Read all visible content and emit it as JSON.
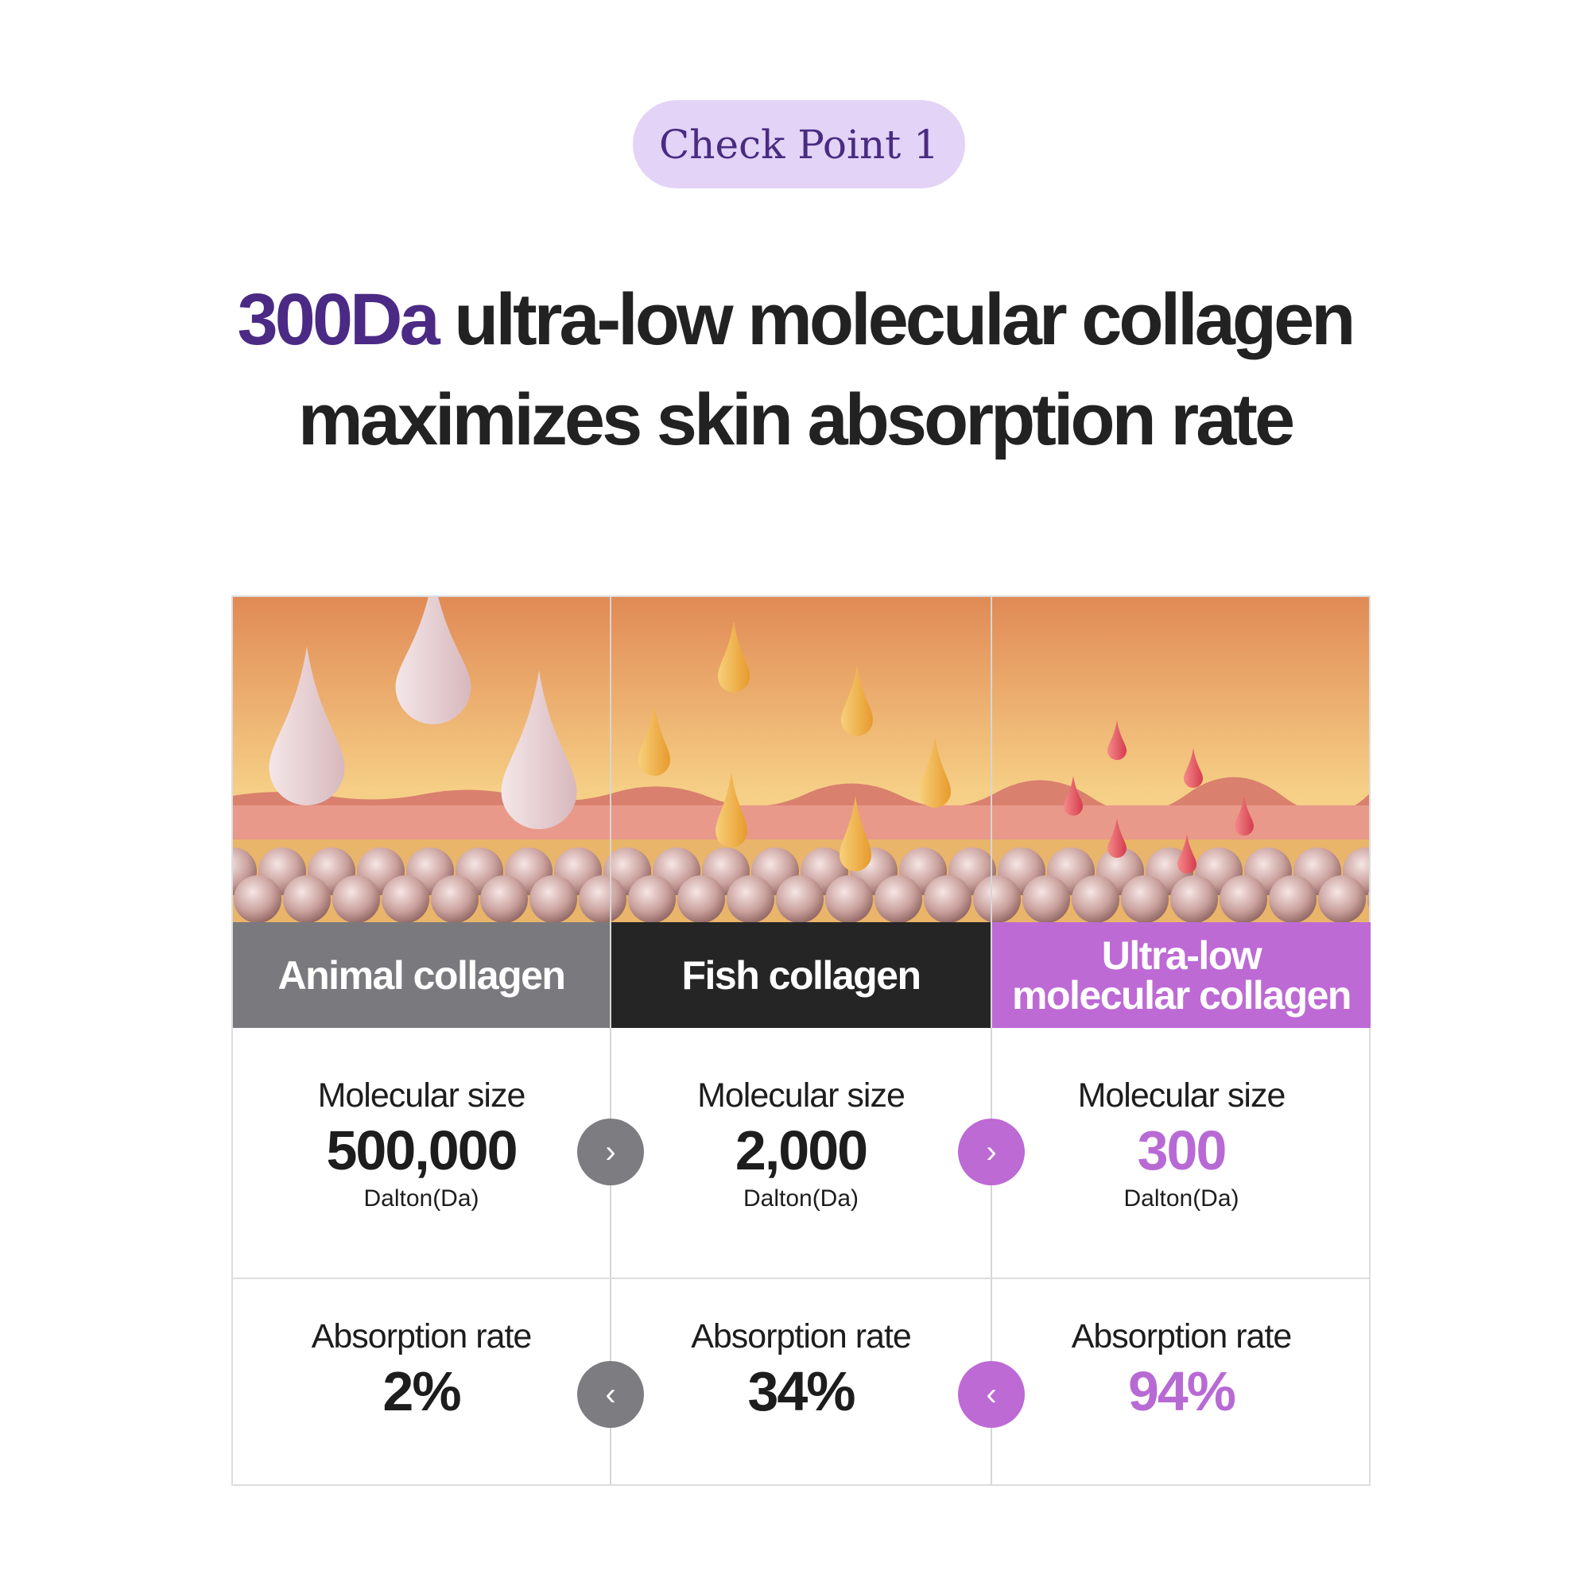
{
  "badge": {
    "label": "Check Point 1"
  },
  "headline": {
    "accent": "300Da",
    "line1_rest": " ultra-low molecular collagen",
    "line2": "maximizes skin absorption rate"
  },
  "colors": {
    "accent_purple": "#b86ad4",
    "dark_purple": "#4b2a85",
    "animal_header": "#7a797e",
    "fish_header": "#252525",
    "ultra_header": "#bd6ad5",
    "pill_bg": "#e2d3f7"
  },
  "columns": [
    {
      "header": "Animal collagen",
      "size_label": "Molecular size",
      "size_value": "500,000",
      "size_unit": "Dalton(Da)",
      "rate_label": "Absorption rate",
      "rate_value": "2%"
    },
    {
      "header": "Fish collagen",
      "size_label": "Molecular size",
      "size_value": "2,000",
      "size_unit": "Dalton(Da)",
      "rate_label": "Absorption rate",
      "rate_value": "34%"
    },
    {
      "header_line1": "Ultra-low",
      "header_line2": "molecular collagen",
      "size_label": "Molecular size",
      "size_value": "300",
      "size_unit": "Dalton(Da)",
      "rate_label": "Absorption rate",
      "rate_value": "94%"
    }
  ],
  "arrows": {
    "size_row": "chevron-right-icon",
    "rate_row": "chevron-left-icon"
  }
}
